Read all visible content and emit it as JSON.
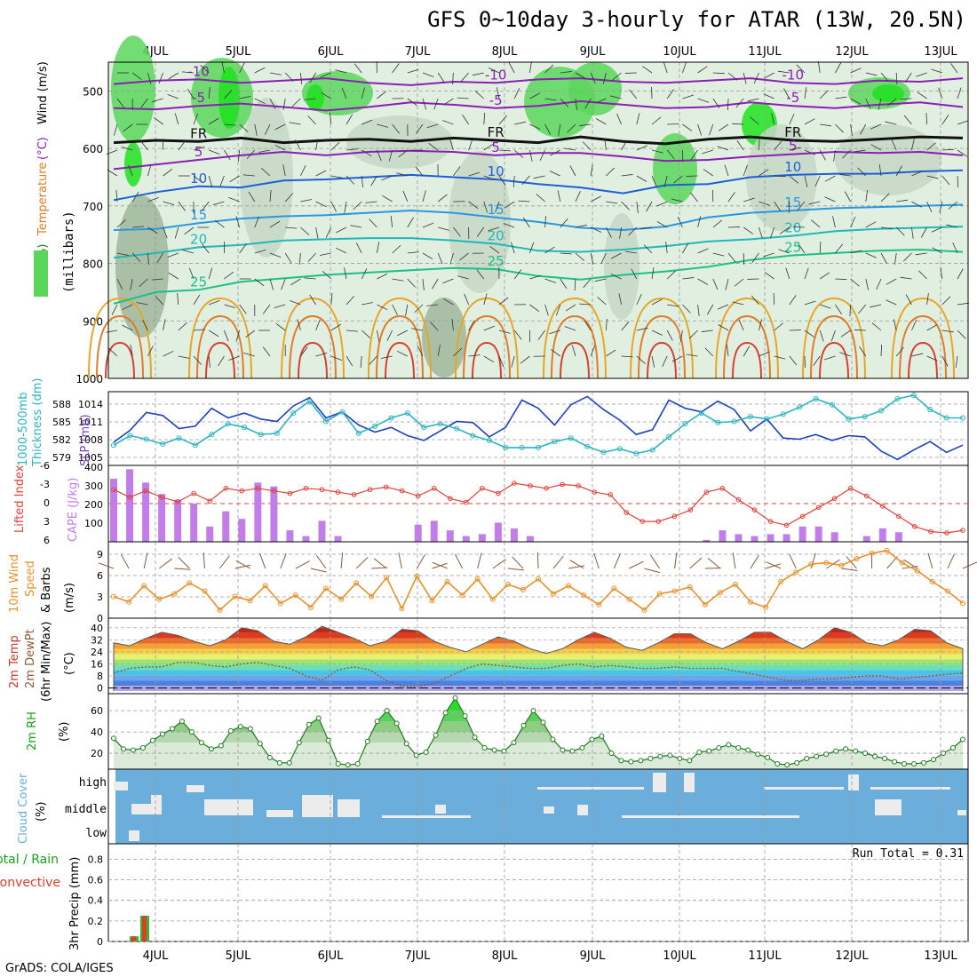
{
  "title": "GFS 0~10day 3-hourly for ATAR (13W, 20.5N)",
  "footer": "GrADS: COLA/IGES",
  "colors": {
    "rh_light": "#e1efe0",
    "rh_mid": "#c6d7c4",
    "rh_dark": "#9fb79c",
    "rh_green": "#5ad65a",
    "rh_bright": "#1ee21e",
    "slp": "#1e3fbf",
    "thickness": "#2db4c0",
    "lifted": "#e0413b",
    "cape": "#c27ee8",
    "wind10": "#e8912b",
    "barb": "#8b5a3a",
    "sky": "#6baedb",
    "cloud": "#ececec",
    "precip_green": "#2cbf2c",
    "precip_red": "#e03c2a"
  },
  "chart_data": [
    {
      "panel": "upper-air",
      "type": "heatmap",
      "ylabel_parts": [
        "RH (%)",
        "Temperature",
        "(°C)",
        "Wind (m/s)"
      ],
      "ylabel2": "(millibars)",
      "x_labels": [
        "4JUL",
        "5JUL",
        "6JUL",
        "7JUL",
        "8JUL",
        "9JUL",
        "10JUL",
        "11JUL",
        "12JUL",
        "13JUL"
      ],
      "y_ticks": [
        500,
        600,
        700,
        800,
        900,
        1000
      ],
      "ylim": [
        450,
        1000
      ],
      "temperature_contours": [
        {
          "label": "-10",
          "color": "#8b1fb3",
          "p": [
            488,
            482,
            480,
            486,
            482,
            478,
            486,
            490,
            484,
            486,
            480,
            478,
            484,
            486,
            482,
            478,
            486,
            488,
            482,
            484,
            478
          ]
        },
        {
          "label": "-5",
          "color": "#8b1fb3",
          "p": [
            530,
            532,
            526,
            522,
            528,
            534,
            528,
            520,
            524,
            530,
            526,
            518,
            524,
            530,
            528,
            520,
            526,
            530,
            524,
            520,
            528
          ]
        },
        {
          "label": "FR",
          "color": "#111111",
          "p": [
            590,
            586,
            588,
            582,
            590,
            586,
            584,
            588,
            582,
            586,
            590,
            580,
            588,
            592,
            584,
            580,
            586,
            588,
            584,
            580,
            582
          ]
        },
        {
          "label": "5",
          "color": "#8b1fb3",
          "p": [
            636,
            628,
            620,
            612,
            606,
            612,
            606,
            604,
            606,
            612,
            608,
            608,
            614,
            622,
            620,
            614,
            610,
            606,
            608,
            606,
            612
          ]
        },
        {
          "label": "10",
          "color": "#1d5fd6",
          "p": [
            690,
            676,
            666,
            668,
            656,
            654,
            650,
            646,
            650,
            654,
            662,
            668,
            678,
            664,
            662,
            650,
            646,
            644,
            644,
            640,
            638
          ]
        },
        {
          "label": "15",
          "color": "#2a98e0",
          "p": [
            742,
            740,
            730,
            722,
            718,
            716,
            712,
            708,
            712,
            720,
            728,
            738,
            742,
            736,
            720,
            712,
            708,
            704,
            702,
            700,
            698
          ]
        },
        {
          "label": "20",
          "color": "#20b8b8",
          "p": [
            790,
            782,
            772,
            768,
            760,
            758,
            756,
            756,
            760,
            766,
            778,
            780,
            776,
            770,
            762,
            758,
            752,
            744,
            740,
            738,
            736
          ]
        },
        {
          "label": "25",
          "color": "#1bc08a",
          "p": [
            870,
            850,
            846,
            832,
            826,
            820,
            816,
            812,
            808,
            810,
            822,
            828,
            820,
            814,
            806,
            794,
            786,
            782,
            778,
            776,
            780
          ]
        }
      ],
      "wind_profile_range": "30 (light annotations)"
    },
    {
      "panel": "slp-thickness",
      "type": "line",
      "ylabel_left": [
        "1000-500mb",
        "Thickness (dm)"
      ],
      "ylabel_right": "SLP (mb)",
      "y_ticks_left": [
        "588",
        "585",
        "582",
        "579"
      ],
      "y_ticks_right": [
        "1014",
        "1011",
        "1008",
        "1005"
      ],
      "series": [
        {
          "name": "SLP (mb)",
          "values": [
            1007.5,
            1009.5,
            1012.5,
            1012.0,
            1009.8,
            1010.2,
            1013.2,
            1011.6,
            1012.4,
            1011.4,
            1011.0,
            1013.6,
            1015.0,
            1011.6,
            1012.6,
            1010.4,
            1009.2,
            1010.0,
            1008.6,
            1007.8,
            1009.4,
            1011.0,
            1010.8,
            1008.4,
            1010.0,
            1014.6,
            1013.2,
            1010.4,
            1013.8,
            1015.2,
            1013.0,
            1011.2,
            1008.8,
            1009.6,
            1014.6,
            1013.2,
            1012.6,
            1014.4,
            1013.0,
            1009.4,
            1011.4,
            1008.2,
            1008.0,
            1008.8,
            1007.8,
            1008.6,
            1008.4,
            1006.0,
            1004.6,
            1006.2,
            1007.6,
            1005.8,
            1007.0
          ]
        },
        {
          "name": "Thickness (dm)",
          "values": [
            581.0,
            582.6,
            582.0,
            581.2,
            582.2,
            581.0,
            582.8,
            584.6,
            584.0,
            582.8,
            583.0,
            586.4,
            588.4,
            585.0,
            586.6,
            583.0,
            584.2,
            585.6,
            586.4,
            584.0,
            584.6,
            583.8,
            582.6,
            581.8,
            580.6,
            580.6,
            580.6,
            581.6,
            582.2,
            580.8,
            579.8,
            580.4,
            579.6,
            580.2,
            582.4,
            584.6,
            586.4,
            584.8,
            585.0,
            585.8,
            585.4,
            586.2,
            587.4,
            588.8,
            587.8,
            585.4,
            585.8,
            586.8,
            588.8,
            589.4,
            587.0,
            585.6,
            585.6
          ]
        }
      ]
    },
    {
      "panel": "lifted-cape",
      "type": "bar",
      "ylabel_left": "Lifted Index",
      "ylabel_right": "CAPE (J/kg)",
      "y_ticks_left": [
        "6",
        "3",
        "0",
        "-3",
        "-6"
      ],
      "y_ticks_right": [
        "400",
        "300",
        "200",
        "100"
      ],
      "series": [
        {
          "name": "CAPE (J/kg)",
          "values": [
            330,
            380,
            310,
            250,
            220,
            200,
            80,
            160,
            120,
            310,
            290,
            60,
            30,
            110,
            30,
            0,
            0,
            0,
            0,
            90,
            110,
            60,
            30,
            40,
            100,
            70,
            30,
            0,
            0,
            0,
            0,
            0,
            0,
            0,
            0,
            0,
            0,
            10,
            60,
            40,
            30,
            40,
            40,
            80,
            80,
            50,
            0,
            30,
            70,
            50,
            0,
            0,
            0,
            0
          ]
        },
        {
          "name": "Lifted Index",
          "values": [
            -2.2,
            -1.0,
            -2.0,
            -1.0,
            -0.3,
            -1.6,
            -0.4,
            -2.4,
            -2.0,
            -2.4,
            -2.0,
            -1.6,
            -2.4,
            -2.2,
            -1.8,
            -1.4,
            -2.2,
            -2.6,
            -2.0,
            -1.2,
            -2.4,
            -0.8,
            -0.2,
            -2.4,
            -1.6,
            -3.2,
            -2.8,
            -2.4,
            -3.0,
            -2.8,
            -1.8,
            -1.4,
            1.4,
            2.8,
            2.8,
            2.0,
            1.0,
            -1.8,
            -2.4,
            -0.6,
            1.0,
            2.8,
            3.4,
            2.0,
            0.6,
            -0.8,
            -2.4,
            -1.2,
            0.4,
            2.0,
            3.6,
            4.4,
            4.6,
            4.2
          ]
        }
      ]
    },
    {
      "panel": "wind10m",
      "type": "line",
      "ylabel": [
        "10m Wind",
        "Speed",
        "& Barbs"
      ],
      "yunit": "(m/s)",
      "y_ticks": [
        "9",
        "6",
        "3",
        "0"
      ],
      "series": [
        {
          "name": "10m Wind Speed",
          "values": [
            3.2,
            2.4,
            4.8,
            2.8,
            3.6,
            5.2,
            4.0,
            1.2,
            3.2,
            2.6,
            4.8,
            2.2,
            3.4,
            1.6,
            4.4,
            2.8,
            5.2,
            3.2,
            6.0,
            1.4,
            6.2,
            2.6,
            5.4,
            3.4,
            5.8,
            2.8,
            5.0,
            4.2,
            5.8,
            3.6,
            4.8,
            3.4,
            2.0,
            4.4,
            2.8,
            1.2,
            3.6,
            4.0,
            4.6,
            2.0,
            3.8,
            5.0,
            2.4,
            1.6,
            5.4,
            6.8,
            8.0,
            8.2,
            7.8,
            8.8,
            9.6,
            10.0,
            8.2,
            7.0,
            5.4,
            4.0,
            2.2
          ]
        }
      ]
    },
    {
      "panel": "temp-dewpt",
      "type": "area",
      "ylabel": [
        "2m Temp",
        "2m DewPt",
        "(6hr Min/Max)"
      ],
      "yunit": "(°C)",
      "y_ticks": [
        "40",
        "32",
        "24",
        "16",
        "8",
        "0"
      ],
      "series": [
        {
          "name": "2m Temp",
          "values": [
            30,
            28,
            33,
            37,
            35,
            31,
            28,
            32,
            40,
            38,
            31,
            29,
            34,
            41,
            37,
            33,
            28,
            31,
            39,
            38,
            31,
            27,
            24,
            29,
            34,
            31,
            26,
            23,
            26,
            32,
            37,
            33,
            27,
            25,
            30,
            36,
            36,
            30,
            26,
            31,
            37,
            37,
            31,
            26,
            32,
            40,
            37,
            30,
            28,
            32,
            39,
            38,
            30,
            26
          ]
        },
        {
          "name": "2m DewPt",
          "values": [
            10,
            13,
            14,
            14,
            17,
            17,
            15,
            14,
            16,
            17,
            15,
            13,
            8,
            5,
            12,
            14,
            12,
            5,
            1,
            1,
            3,
            8,
            13,
            16,
            15,
            14,
            13,
            13,
            15,
            16,
            14,
            15,
            14,
            13,
            13,
            14,
            13,
            13,
            13,
            11,
            9,
            7,
            5,
            5,
            6,
            6,
            7,
            8,
            8,
            6,
            7,
            8,
            9,
            10
          ]
        }
      ]
    },
    {
      "panel": "rh2m",
      "type": "area",
      "ylabel": "2m RH",
      "yunit": "(%)",
      "y_ticks": [
        "60",
        "40",
        "20"
      ],
      "series": [
        {
          "name": "2m RH",
          "values": [
            34,
            24,
            23,
            25,
            32,
            38,
            43,
            50,
            40,
            30,
            24,
            27,
            41,
            45,
            43,
            29,
            16,
            11,
            11,
            30,
            47,
            53,
            32,
            10,
            9,
            10,
            31,
            50,
            60,
            48,
            29,
            18,
            21,
            37,
            58,
            72,
            55,
            35,
            25,
            23,
            22,
            30,
            46,
            60,
            49,
            33,
            23,
            22,
            25,
            33,
            36,
            20,
            13,
            12,
            13,
            15,
            17,
            18,
            15,
            13,
            21,
            22,
            25,
            28,
            25,
            23,
            19,
            16,
            10,
            9,
            11,
            15,
            17,
            19,
            22,
            24,
            22,
            20,
            17,
            15,
            12,
            10,
            10,
            11,
            14,
            20,
            25,
            33
          ]
        }
      ]
    },
    {
      "panel": "cloud-cover",
      "type": "bar",
      "ylabel": "Cloud Cover",
      "yunit": "(%)",
      "y_labels": [
        "high",
        "middle",
        "low"
      ]
    },
    {
      "panel": "precip",
      "type": "bar",
      "ylabel": "3hr Precip (mm)",
      "ylabel_side": [
        "Total / Rain",
        "Convective"
      ],
      "y_ticks": [
        "0.8",
        "0.6",
        "0.4",
        "0.2",
        "0"
      ],
      "annotation": "Run Total = 0.31",
      "series": [
        {
          "name": "Total",
          "values": [
            0.05,
            0.25
          ]
        },
        {
          "name": "Convective",
          "values": [
            0.05,
            0.25
          ]
        }
      ]
    }
  ]
}
